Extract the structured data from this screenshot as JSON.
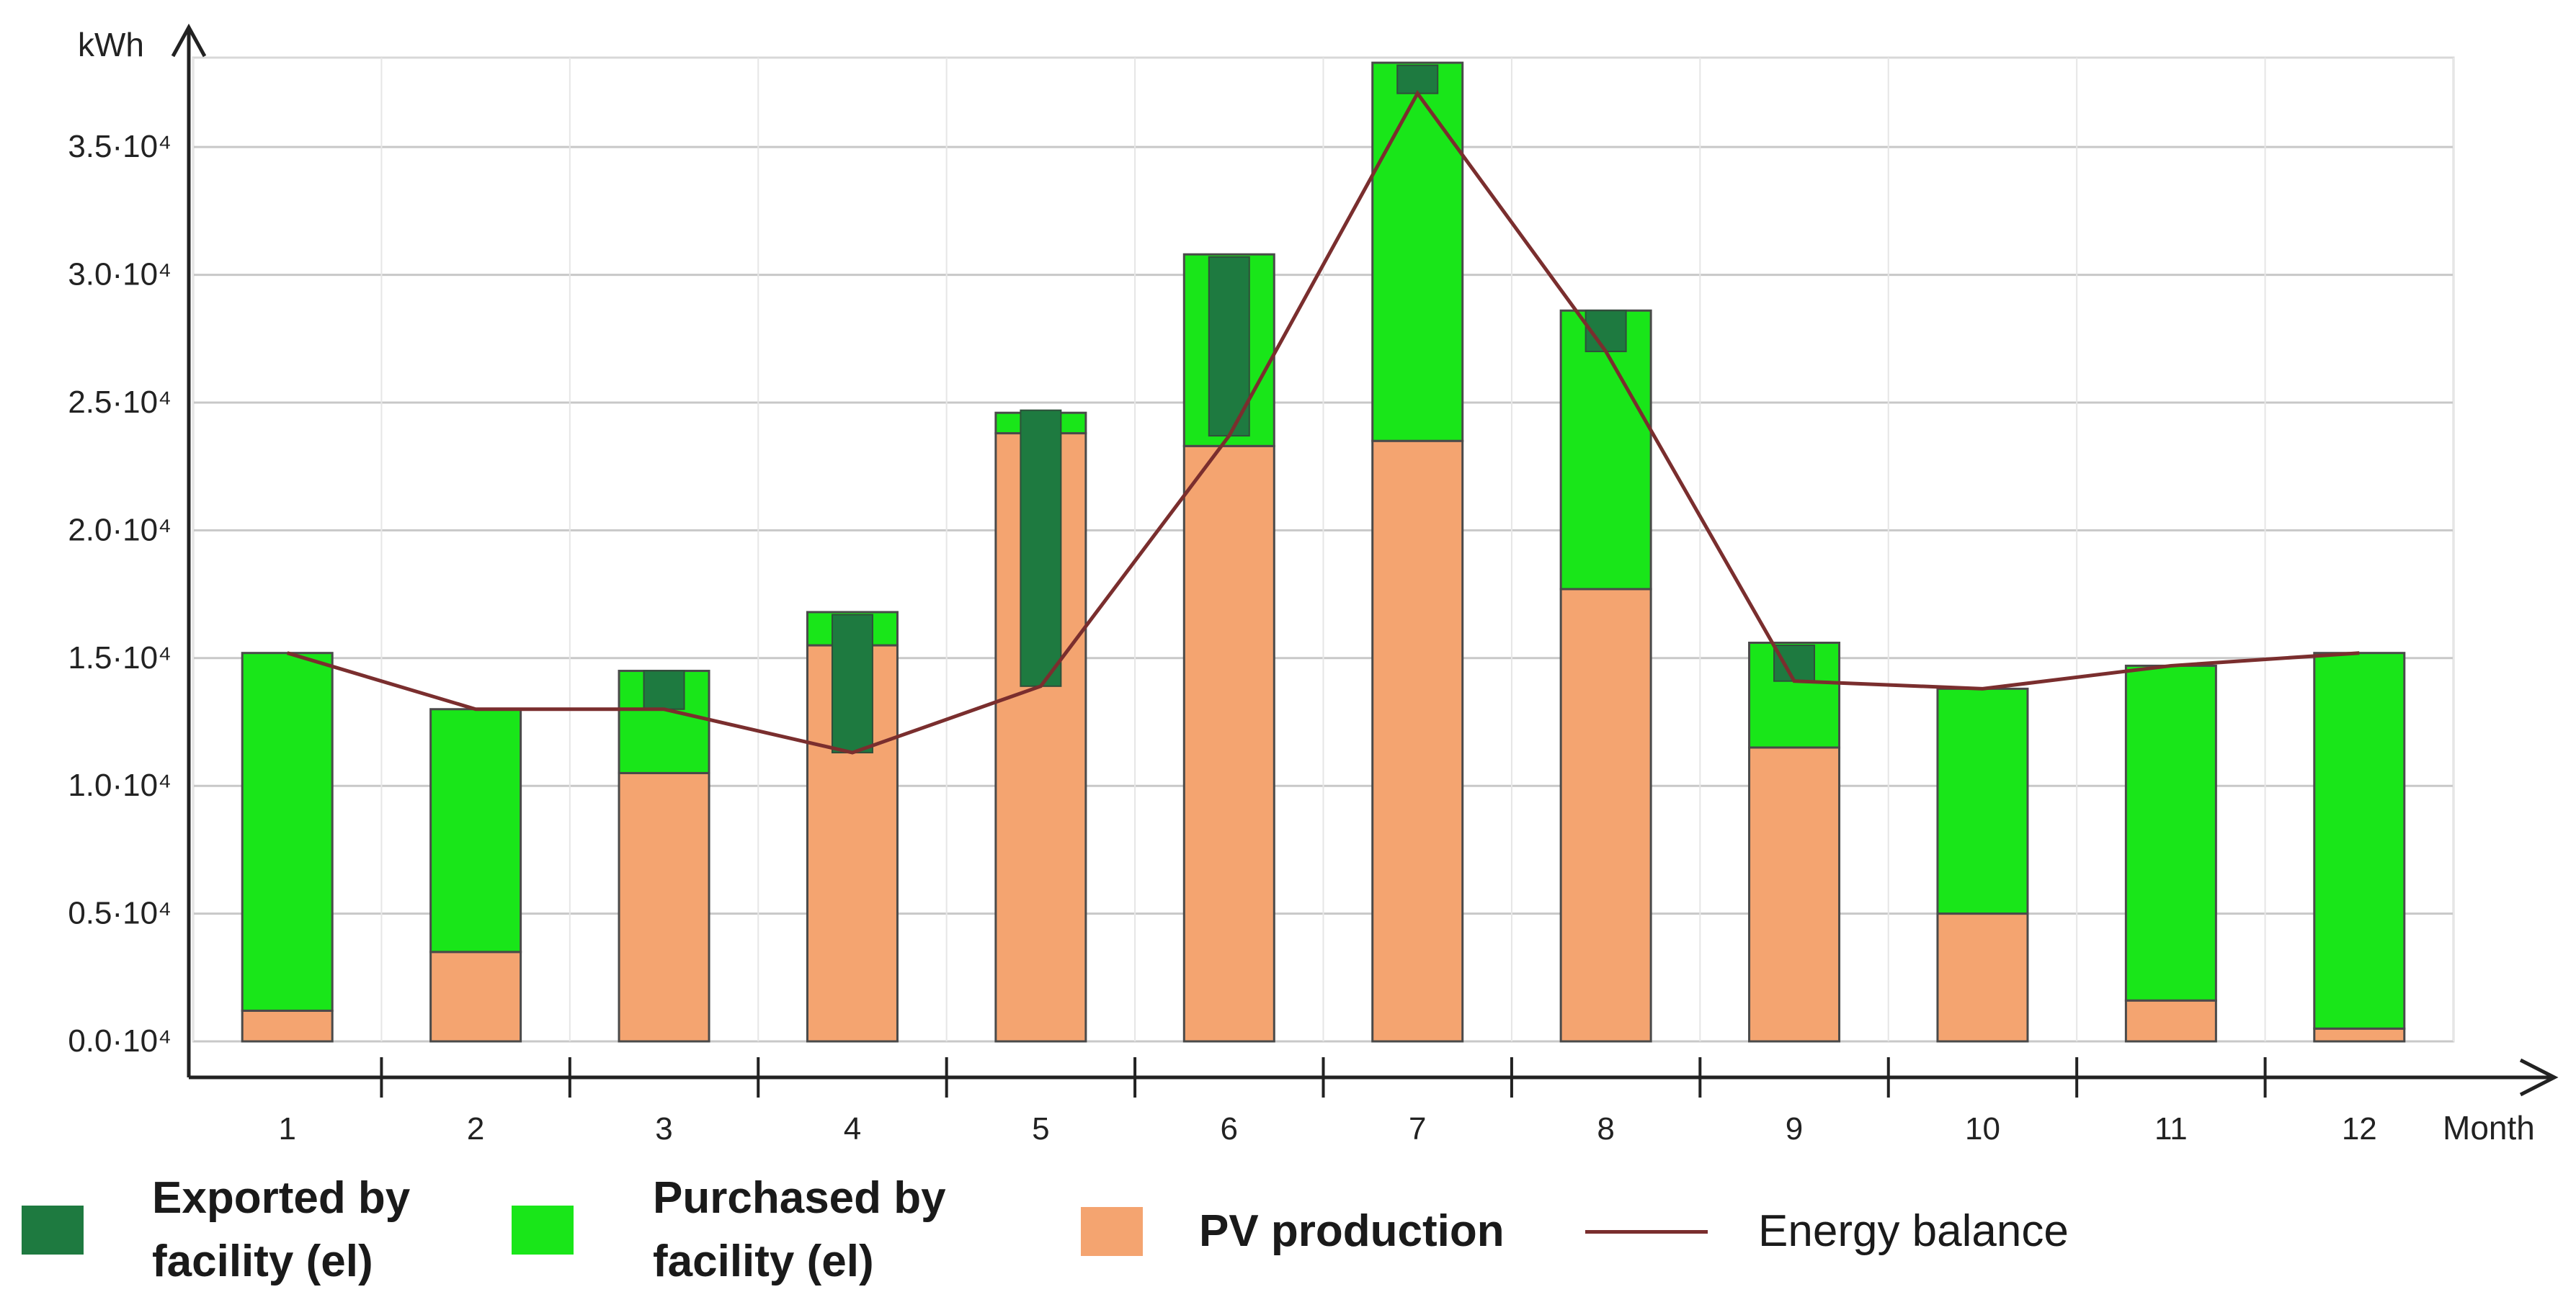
{
  "chart_data": {
    "type": "bar",
    "stacked": true,
    "title": "",
    "xlabel": "Month",
    "ylabel": "kWh",
    "ylim": [
      0,
      38500
    ],
    "yticks": [
      0,
      5000,
      10000,
      15000,
      20000,
      25000,
      30000,
      35000
    ],
    "ytick_labels": [
      "0.0·10⁴",
      "0.5·10⁴",
      "1.0·10⁴",
      "1.5·10⁴",
      "2.0·10⁴",
      "2.5·10⁴",
      "3.0·10⁴",
      "3.5·10⁴"
    ],
    "categories": [
      "1",
      "2",
      "3",
      "4",
      "5",
      "6",
      "7",
      "8",
      "9",
      "10",
      "11",
      "12"
    ],
    "series": [
      {
        "name": "PV production",
        "color": "#f4a470",
        "values": [
          1200,
          3500,
          10500,
          15500,
          23800,
          23300,
          23500,
          17700,
          11500,
          5000,
          1600,
          500
        ]
      },
      {
        "name": "Purchased by facility (el)",
        "color": "#19e619",
        "values": [
          14000,
          9500,
          4000,
          1300,
          800,
          7500,
          14800,
          10900,
          4100,
          8800,
          13100,
          14700
        ]
      },
      {
        "name": "Exported by facility (el)",
        "color": "#1e7a40",
        "ranges": [
          null,
          null,
          [
            13000,
            14500
          ],
          [
            11300,
            16700
          ],
          [
            13900,
            24700
          ],
          [
            23700,
            30700
          ],
          [
            37100,
            38200
          ],
          [
            27000,
            28600
          ],
          [
            14100,
            15500
          ],
          null,
          null,
          null
        ]
      }
    ],
    "line": {
      "name": "Energy balance",
      "color": "#7a2e2e",
      "values": [
        15200,
        13000,
        13000,
        11300,
        13900,
        23700,
        37100,
        27000,
        14100,
        13800,
        14700,
        15200
      ]
    },
    "grid": true
  },
  "legend": {
    "exported_line1": "Exported by",
    "exported_line2": "facility (el)",
    "purchased_line1": "Purchased by",
    "purchased_line2": "facility (el)",
    "pv": "PV production",
    "balance": "Energy balance"
  },
  "colors": {
    "exported": "#1e7a40",
    "purchased": "#19e619",
    "pv": "#f4a470",
    "balance": "#7a2e2e"
  }
}
